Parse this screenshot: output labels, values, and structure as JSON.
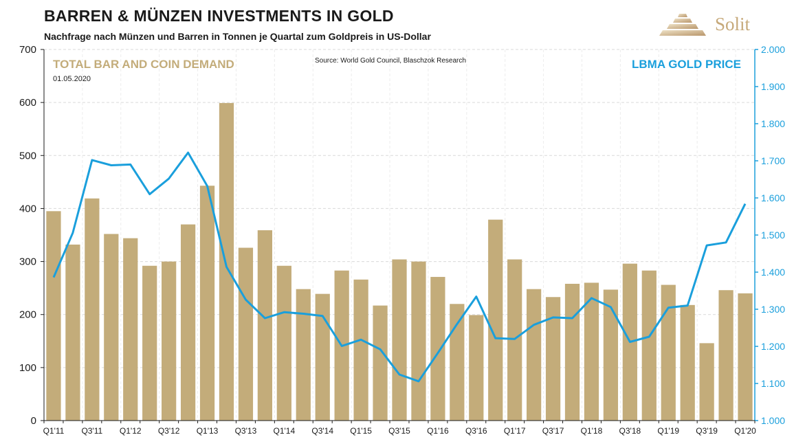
{
  "header": {
    "title": "BARREN & MÜNZEN INVESTMENTS IN GOLD",
    "subtitle": "Nachfrage nach Münzen und Barren in Tonnen je Quartal zum Goldpreis in US-Dollar"
  },
  "logo": {
    "text": "Solit",
    "icon": "stepped-pyramid-logo"
  },
  "colors": {
    "bars": "#c3ac7a",
    "line": "#1a9fdc",
    "grid": "#d9d9d9",
    "left_axis_text": "#1a1a1a",
    "right_axis_text": "#1a9fdc",
    "bar_label": "#c3ac7a"
  },
  "chart_data": {
    "type": "bar",
    "title": "BARREN & MÜNZEN INVESTMENTS IN GOLD",
    "subtitle": "Nachfrage nach Münzen und Barren in Tonnen je Quartal zum Goldpreis in US-Dollar",
    "source": "Source: World Gold Council, Blaschzok Research",
    "date": "01.05.2020",
    "categories": [
      "Q1'11",
      "Q2'11",
      "Q3'11",
      "Q4'11",
      "Q1'12",
      "Q2'12",
      "Q3'12",
      "Q4'12",
      "Q1'13",
      "Q2'13",
      "Q3'13",
      "Q4'13",
      "Q1'14",
      "Q2'14",
      "Q3'14",
      "Q4'14",
      "Q1'15",
      "Q2'15",
      "Q3'15",
      "Q4'15",
      "Q1'16",
      "Q2'16",
      "Q3'16",
      "Q4'16",
      "Q1'17",
      "Q2'17",
      "Q3'17",
      "Q4'17",
      "Q1'18",
      "Q2'18",
      "Q3'18",
      "Q4'18",
      "Q1'19",
      "Q2'19",
      "Q3'19",
      "Q4'19",
      "Q1'20"
    ],
    "x_tick_labels": [
      "Q1'11",
      "Q3'11",
      "Q1'12",
      "Q3'12",
      "Q1'13",
      "Q3'13",
      "Q1'14",
      "Q3'14",
      "Q1'15",
      "Q3'15",
      "Q1'16",
      "Q3'16",
      "Q1'17",
      "Q3'17",
      "Q1'18",
      "Q3'18",
      "Q1'19",
      "Q3'19",
      "Q1'20"
    ],
    "series": [
      {
        "name": "TOTAL BAR AND COIN DEMAND",
        "type": "bar",
        "axis": "left",
        "values": [
          395,
          332,
          419,
          352,
          344,
          292,
          300,
          370,
          443,
          599,
          326,
          359,
          292,
          248,
          239,
          283,
          266,
          217,
          304,
          300,
          271,
          220,
          199,
          379,
          304,
          248,
          233,
          258,
          260,
          247,
          296,
          283,
          256,
          218,
          146,
          246,
          240
        ]
      },
      {
        "name": "LBMA GOLD PRICE",
        "type": "line",
        "axis": "right",
        "values": [
          1386,
          1506,
          1702,
          1688,
          1690,
          1610,
          1652,
          1722,
          1632,
          1414,
          1326,
          1276,
          1292,
          1288,
          1282,
          1201,
          1218,
          1192,
          1124,
          1106,
          1182,
          1260,
          1334,
          1222,
          1220,
          1258,
          1278,
          1276,
          1330,
          1306,
          1212,
          1226,
          1304,
          1310,
          1472,
          1480,
          1584
        ]
      }
    ],
    "y_left": {
      "ylim": [
        0,
        700
      ],
      "ticks": [
        "0",
        "100",
        "200",
        "300",
        "400",
        "500",
        "600",
        "700"
      ]
    },
    "y_right": {
      "ylim": [
        1000,
        2000
      ],
      "ticks": [
        "1.000",
        "1.100",
        "1.200",
        "1.300",
        "1.400",
        "1.500",
        "1.600",
        "1.700",
        "1.800",
        "1.900",
        "2.000"
      ]
    },
    "grid": true,
    "legend": [
      "TOTAL BAR AND COIN DEMAND",
      "LBMA GOLD PRICE"
    ]
  }
}
